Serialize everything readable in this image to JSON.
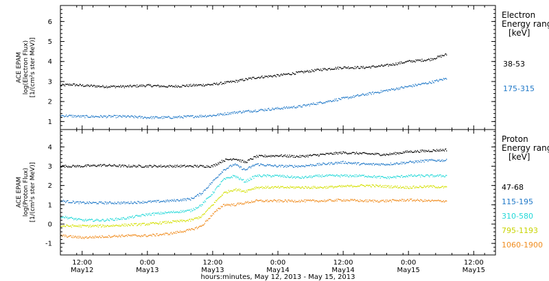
{
  "chart_data": {
    "type": "scatter",
    "xlabel": "hours:minutes, May 12, 2013 - May 15, 2013",
    "xlim_hours": [
      -16,
      64
    ],
    "x_ticks": [
      {
        "hour": -12,
        "line1": "12:00",
        "line2": "May12"
      },
      {
        "hour": 0,
        "line1": "0:00",
        "line2": "May13"
      },
      {
        "hour": 12,
        "line1": "12:00",
        "line2": "May13"
      },
      {
        "hour": 24,
        "line1": "0:00",
        "line2": "May14"
      },
      {
        "hour": 36,
        "line1": "12:00",
        "line2": "May14"
      },
      {
        "hour": 48,
        "line1": "0:00",
        "line2": "May15"
      },
      {
        "hour": 60,
        "line1": "12:00",
        "line2": "May15"
      }
    ],
    "panels": [
      {
        "id": "electron",
        "ylabel_lines": [
          "ACE EPAM",
          "log(Electron Flux)",
          "[1/(cm²s ster MeV)]"
        ],
        "ylim": [
          0.6,
          6.8
        ],
        "yticks": [
          1,
          2,
          3,
          4,
          5,
          6
        ],
        "legend_title": "Electron\nEnergy range\n[keV]",
        "series": [
          {
            "name": "38-53",
            "color": "#000000",
            "x": [
              -16,
              -14,
              -12,
              -8,
              -4,
              0,
              4,
              8,
              12,
              16,
              20,
              24,
              28,
              32,
              36,
              40,
              44,
              48,
              52,
              55
            ],
            "y": [
              2.8,
              2.85,
              2.8,
              2.75,
              2.75,
              2.8,
              2.75,
              2.8,
              2.85,
              3.0,
              3.2,
              3.3,
              3.45,
              3.6,
              3.7,
              3.7,
              3.8,
              4.0,
              4.1,
              4.35
            ]
          },
          {
            "name": "175-315",
            "color": "#1f78c8",
            "x": [
              -16,
              -12,
              -8,
              -4,
              0,
              4,
              8,
              12,
              16,
              20,
              24,
              28,
              32,
              36,
              40,
              44,
              48,
              52,
              55
            ],
            "y": [
              1.3,
              1.25,
              1.25,
              1.25,
              1.2,
              1.2,
              1.25,
              1.3,
              1.45,
              1.55,
              1.65,
              1.75,
              1.95,
              2.15,
              2.35,
              2.55,
              2.75,
              2.95,
              3.15
            ]
          }
        ]
      },
      {
        "id": "proton",
        "ylabel_lines": [
          "ACE EPAM",
          "log(Proton Flux)",
          "[1/(cm²s ster MeV)]"
        ],
        "ylim": [
          -1.6,
          4.9
        ],
        "yticks": [
          -1,
          0,
          1,
          2,
          3,
          4
        ],
        "legend_title": "Proton\nEnergy range\n[keV]",
        "series": [
          {
            "name": "47-68",
            "color": "#000000",
            "x": [
              -16,
              -12,
              -8,
              -4,
              0,
              4,
              8,
              12,
              14,
              16,
              18,
              20,
              24,
              28,
              32,
              36,
              40,
              44,
              48,
              52,
              55
            ],
            "y": [
              3.0,
              3.0,
              3.05,
              3.0,
              3.0,
              3.0,
              3.0,
              3.0,
              3.3,
              3.4,
              3.2,
              3.5,
              3.55,
              3.5,
              3.6,
              3.7,
              3.65,
              3.6,
              3.75,
              3.8,
              3.85
            ]
          },
          {
            "name": "115-195",
            "color": "#1f78c8",
            "x": [
              -16,
              -12,
              -8,
              -4,
              0,
              4,
              8,
              10,
              12,
              14,
              16,
              18,
              20,
              24,
              28,
              32,
              36,
              40,
              44,
              48,
              52,
              55
            ],
            "y": [
              1.2,
              1.1,
              1.1,
              1.1,
              1.15,
              1.2,
              1.3,
              1.6,
              2.2,
              2.8,
              3.1,
              2.8,
              3.1,
              3.0,
              3.0,
              3.1,
              3.2,
              3.1,
              3.1,
              3.2,
              3.3,
              3.3
            ]
          },
          {
            "name": "310-580",
            "color": "#22d8d8",
            "x": [
              -16,
              -12,
              -8,
              -4,
              0,
              4,
              8,
              10,
              12,
              14,
              16,
              18,
              20,
              24,
              28,
              32,
              36,
              40,
              44,
              48,
              52,
              55
            ],
            "y": [
              0.4,
              0.2,
              0.2,
              0.3,
              0.5,
              0.6,
              0.7,
              1.0,
              1.6,
              2.3,
              2.5,
              2.2,
              2.5,
              2.5,
              2.4,
              2.5,
              2.5,
              2.5,
              2.4,
              2.5,
              2.5,
              2.5
            ]
          },
          {
            "name": "795-1193",
            "color": "#d4e000",
            "x": [
              -16,
              -12,
              -8,
              -4,
              0,
              4,
              8,
              10,
              12,
              14,
              16,
              18,
              20,
              24,
              28,
              32,
              36,
              40,
              44,
              48,
              52,
              55
            ],
            "y": [
              -0.1,
              -0.1,
              -0.1,
              -0.05,
              0.0,
              0.1,
              0.2,
              0.4,
              1.0,
              1.6,
              1.8,
              1.7,
              1.9,
              1.9,
              1.9,
              1.9,
              1.95,
              2.0,
              1.95,
              1.9,
              1.95,
              1.9
            ]
          },
          {
            "name": "1060-1900",
            "color": "#f08c1e",
            "x": [
              -16,
              -12,
              -8,
              -4,
              0,
              4,
              8,
              10,
              12,
              14,
              16,
              18,
              20,
              24,
              28,
              32,
              36,
              40,
              44,
              48,
              52,
              55
            ],
            "y": [
              -0.6,
              -0.7,
              -0.65,
              -0.6,
              -0.6,
              -0.5,
              -0.3,
              -0.1,
              0.5,
              1.0,
              1.0,
              1.1,
              1.2,
              1.2,
              1.2,
              1.2,
              1.25,
              1.2,
              1.2,
              1.25,
              1.2,
              1.2
            ]
          }
        ]
      }
    ]
  }
}
